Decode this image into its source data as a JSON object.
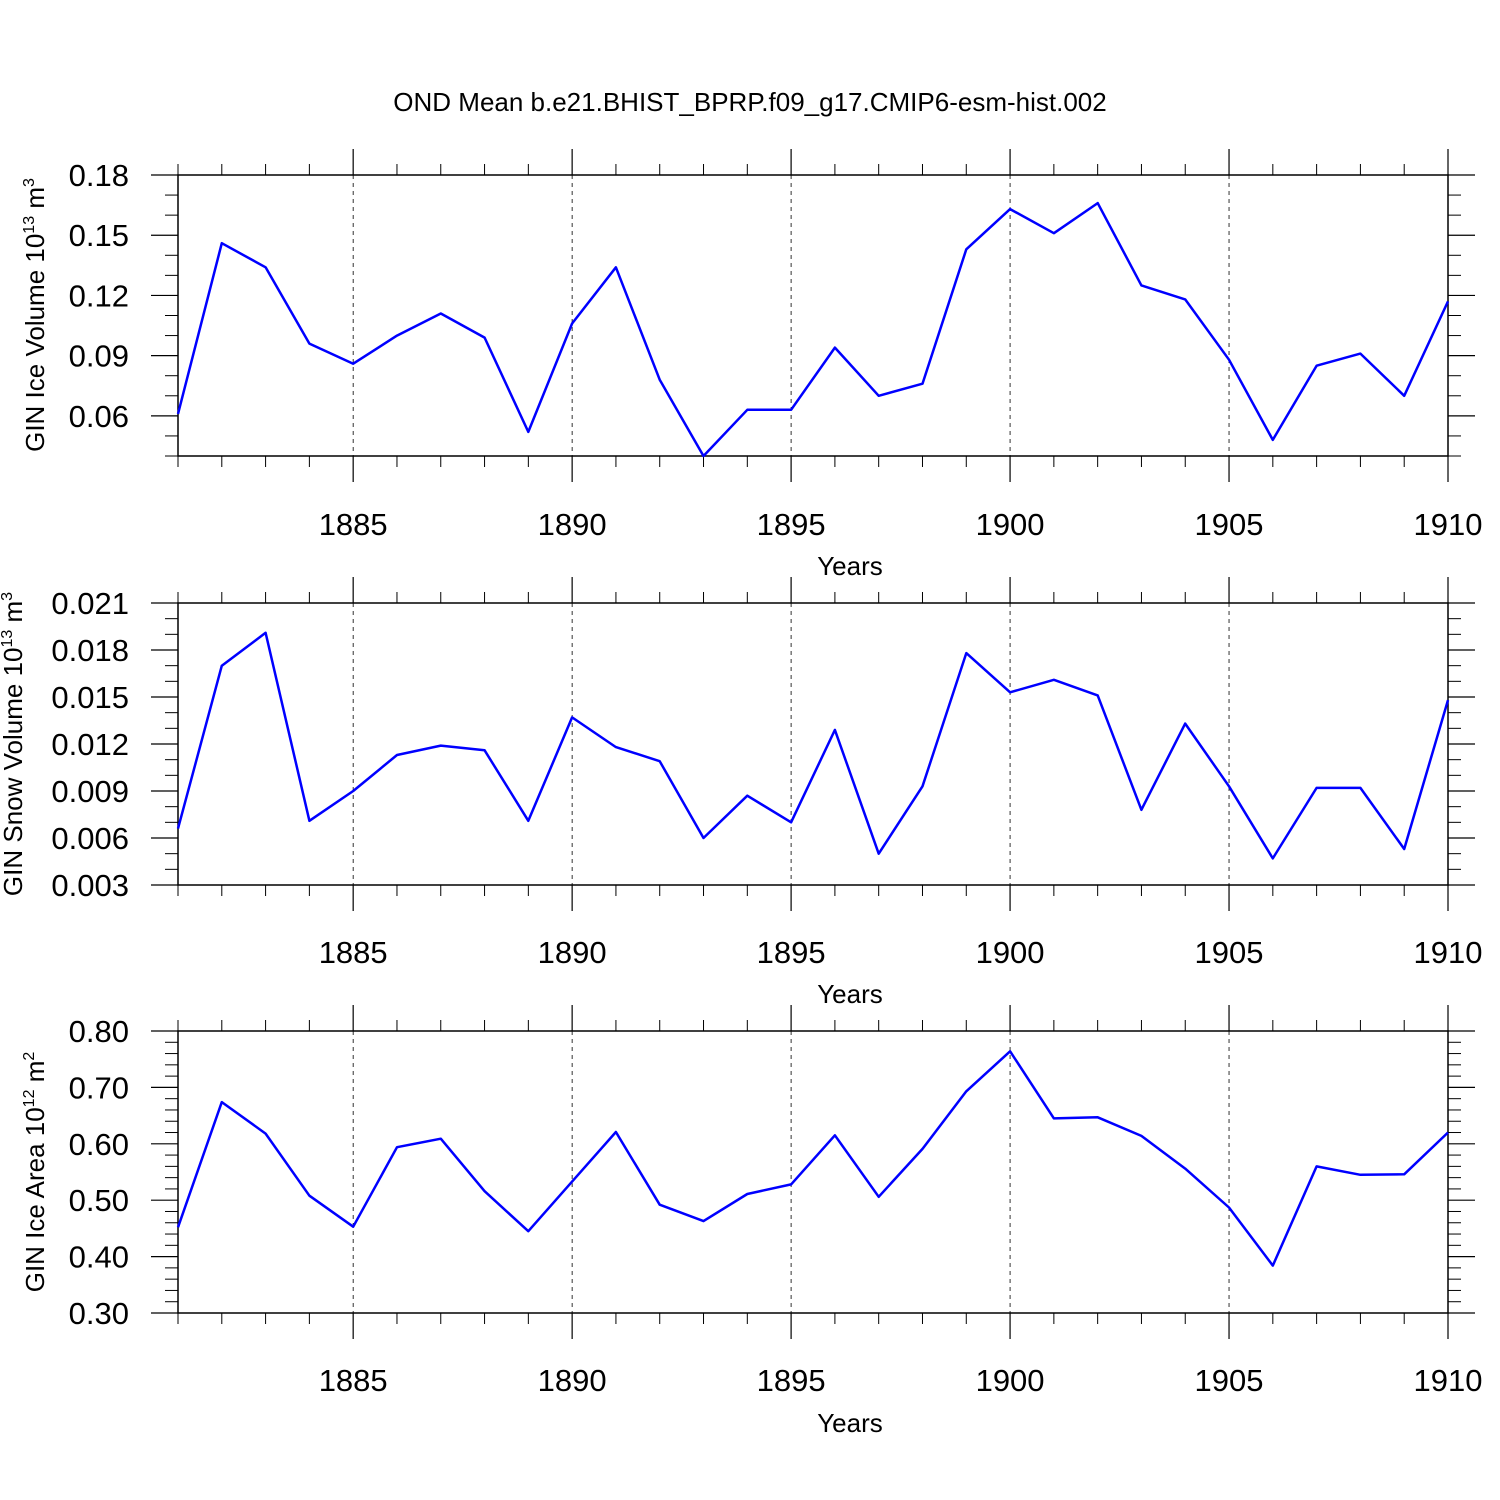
{
  "title": "OND Mean b.e21.BHIST_BPRP.f09_g17.CMIP6-esm-hist.002",
  "colors": {
    "line": "#0000ff",
    "axis": "#000000",
    "grid": "#000000",
    "background": "#ffffff"
  },
  "chart_data": [
    {
      "type": "line",
      "ylabel_main": "GIN Ice Volume 10",
      "ylabel_exp": "13",
      "ylabel_unit": " m",
      "ylabel_unit_exp": "3",
      "xlabel": "Years",
      "xlim": [
        1881,
        1910
      ],
      "ylim": [
        0.04,
        0.18
      ],
      "yticks": [
        0.06,
        0.09,
        0.12,
        0.15,
        0.18
      ],
      "ytick_labels": [
        "0.06",
        "0.09",
        "0.12",
        "0.15",
        "0.18"
      ],
      "yminor_step": 0.01,
      "xticks": [
        1885,
        1890,
        1895,
        1900,
        1905,
        1910
      ],
      "xtick_labels": [
        "1885",
        "1890",
        "1895",
        "1900",
        "1905",
        "1910"
      ],
      "grid": "vertical-dashed",
      "series": [
        {
          "name": "GIN Ice Volume",
          "x": [
            1881,
            1882,
            1883,
            1884,
            1885,
            1886,
            1887,
            1888,
            1889,
            1890,
            1891,
            1892,
            1893,
            1894,
            1895,
            1896,
            1897,
            1898,
            1899,
            1900,
            1901,
            1902,
            1903,
            1904,
            1905,
            1906,
            1907,
            1908,
            1909,
            1910
          ],
          "values": [
            0.061,
            0.146,
            0.134,
            0.096,
            0.086,
            0.1,
            0.111,
            0.099,
            0.052,
            0.106,
            0.134,
            0.078,
            0.04,
            0.063,
            0.063,
            0.094,
            0.07,
            0.076,
            0.143,
            0.163,
            0.151,
            0.166,
            0.125,
            0.118,
            0.088,
            0.048,
            0.085,
            0.091,
            0.07,
            0.117
          ]
        }
      ]
    },
    {
      "type": "line",
      "ylabel_main": "GIN Snow Volume 10",
      "ylabel_exp": "13",
      "ylabel_unit": " m",
      "ylabel_unit_exp": "3",
      "xlabel": "Years",
      "xlim": [
        1881,
        1910
      ],
      "ylim": [
        0.003,
        0.021
      ],
      "yticks": [
        0.003,
        0.006,
        0.009,
        0.012,
        0.015,
        0.018,
        0.021
      ],
      "ytick_labels": [
        "0.003",
        "0.006",
        "0.009",
        "0.012",
        "0.015",
        "0.018",
        "0.021"
      ],
      "yminor_step": 0.001,
      "xticks": [
        1885,
        1890,
        1895,
        1900,
        1905,
        1910
      ],
      "xtick_labels": [
        "1885",
        "1890",
        "1895",
        "1900",
        "1905",
        "1910"
      ],
      "grid": "vertical-dashed",
      "series": [
        {
          "name": "GIN Snow Volume",
          "x": [
            1881,
            1882,
            1883,
            1884,
            1885,
            1886,
            1887,
            1888,
            1889,
            1890,
            1891,
            1892,
            1893,
            1894,
            1895,
            1896,
            1897,
            1898,
            1899,
            1900,
            1901,
            1902,
            1903,
            1904,
            1905,
            1906,
            1907,
            1908,
            1909,
            1910
          ],
          "values": [
            0.0066,
            0.017,
            0.0191,
            0.0071,
            0.009,
            0.0113,
            0.0119,
            0.0116,
            0.0071,
            0.0137,
            0.0118,
            0.0109,
            0.006,
            0.0087,
            0.007,
            0.0129,
            0.005,
            0.0093,
            0.0178,
            0.0153,
            0.0161,
            0.0151,
            0.0078,
            0.0133,
            0.0093,
            0.0047,
            0.0092,
            0.0092,
            0.0053,
            0.0148
          ]
        }
      ]
    },
    {
      "type": "line",
      "ylabel_main": "GIN Ice Area 10",
      "ylabel_exp": "12",
      "ylabel_unit": " m",
      "ylabel_unit_exp": "2",
      "xlabel": "Years",
      "xlim": [
        1881,
        1910
      ],
      "ylim": [
        0.3,
        0.8
      ],
      "yticks": [
        0.3,
        0.4,
        0.5,
        0.6,
        0.7,
        0.8
      ],
      "ytick_labels": [
        "0.30",
        "0.40",
        "0.50",
        "0.60",
        "0.70",
        "0.80"
      ],
      "yminor_step": 0.02,
      "xticks": [
        1885,
        1890,
        1895,
        1900,
        1905,
        1910
      ],
      "xtick_labels": [
        "1885",
        "1890",
        "1895",
        "1900",
        "1905",
        "1910"
      ],
      "grid": "vertical-dashed",
      "series": [
        {
          "name": "GIN Ice Area",
          "x": [
            1881,
            1882,
            1883,
            1884,
            1885,
            1886,
            1887,
            1888,
            1889,
            1890,
            1891,
            1892,
            1893,
            1894,
            1895,
            1896,
            1897,
            1898,
            1899,
            1900,
            1901,
            1902,
            1903,
            1904,
            1905,
            1906,
            1907,
            1908,
            1909,
            1910
          ],
          "values": [
            0.452,
            0.674,
            0.618,
            0.508,
            0.453,
            0.594,
            0.609,
            0.516,
            0.445,
            0.533,
            0.621,
            0.492,
            0.463,
            0.511,
            0.528,
            0.615,
            0.506,
            0.591,
            0.693,
            0.764,
            0.645,
            0.647,
            0.614,
            0.556,
            0.487,
            0.384,
            0.56,
            0.545,
            0.546,
            0.62
          ]
        }
      ]
    }
  ]
}
